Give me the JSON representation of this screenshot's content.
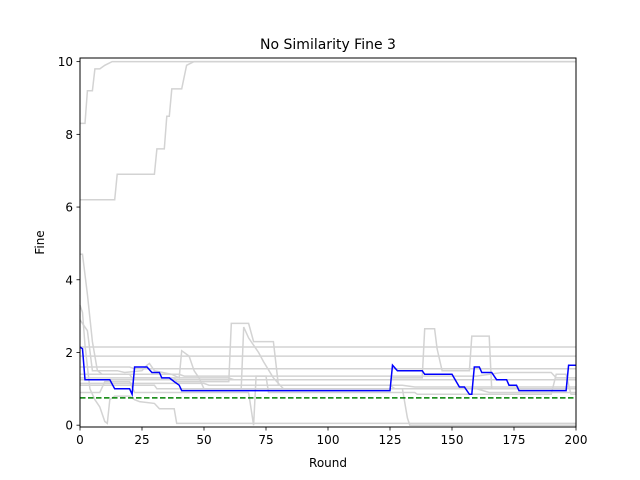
{
  "chart_data": {
    "type": "line",
    "title": "No Similarity Fine 3",
    "xlabel": "Round",
    "ylabel": "Fine",
    "xlim": [
      0,
      200
    ],
    "ylim": [
      -0.05,
      10.1
    ],
    "xticks": [
      0,
      25,
      50,
      75,
      100,
      125,
      150,
      175,
      200
    ],
    "yticks": [
      0,
      2,
      4,
      6,
      8,
      10
    ],
    "grid": false,
    "background_series_color": "#d3d3d3",
    "highlight_color": "#0000ff",
    "reference_color": "#008000",
    "background_series": [
      [
        [
          0,
          8.3
        ],
        [
          2,
          8.3
        ],
        [
          3,
          9.2
        ],
        [
          5,
          9.2
        ],
        [
          6,
          9.8
        ],
        [
          8,
          9.8
        ],
        [
          10,
          9.9
        ],
        [
          13,
          10
        ],
        [
          200,
          10
        ]
      ],
      [
        [
          0,
          6.2
        ],
        [
          14,
          6.2
        ],
        [
          15,
          6.9
        ],
        [
          30,
          6.9
        ],
        [
          31,
          7.6
        ],
        [
          34,
          7.6
        ],
        [
          35,
          8.5
        ],
        [
          36,
          8.5
        ],
        [
          37,
          9.25
        ],
        [
          41,
          9.25
        ],
        [
          43,
          9.9
        ],
        [
          46,
          10
        ],
        [
          200,
          10
        ]
      ],
      [
        [
          0,
          4.7
        ],
        [
          1,
          4.7
        ],
        [
          3,
          3.6
        ],
        [
          5,
          2.3
        ],
        [
          7,
          1.5
        ],
        [
          9,
          1.4
        ],
        [
          20,
          1.4
        ],
        [
          21,
          1.3
        ],
        [
          38,
          1.3
        ],
        [
          39,
          1.2
        ],
        [
          60,
          1.2
        ],
        [
          61,
          2.8
        ],
        [
          68,
          2.8
        ],
        [
          70,
          2.3
        ],
        [
          78,
          2.3
        ],
        [
          80,
          1.1
        ],
        [
          125,
          1.1
        ],
        [
          127,
          1.0
        ],
        [
          200,
          1.0
        ]
      ],
      [
        [
          0,
          3.3
        ],
        [
          1,
          3.1
        ],
        [
          2,
          2.2
        ],
        [
          4,
          1.0
        ],
        [
          6,
          0.7
        ],
        [
          8,
          0.5
        ],
        [
          10,
          0.1
        ],
        [
          11,
          0.05
        ],
        [
          12,
          0.7
        ],
        [
          14,
          0.8
        ],
        [
          20,
          0.8
        ],
        [
          22,
          0.7
        ],
        [
          24,
          0.65
        ],
        [
          30,
          0.6
        ],
        [
          32,
          0.45
        ],
        [
          38,
          0.45
        ],
        [
          39,
          0.05
        ],
        [
          200,
          0.05
        ]
      ],
      [
        [
          0,
          2.9
        ],
        [
          3,
          2.6
        ],
        [
          5,
          1.5
        ],
        [
          15,
          1.5
        ],
        [
          18,
          1.45
        ],
        [
          25,
          1.5
        ],
        [
          27,
          1.65
        ],
        [
          28,
          1.7
        ],
        [
          30,
          1.5
        ],
        [
          37,
          1.4
        ],
        [
          40,
          1.3
        ],
        [
          41,
          2.05
        ],
        [
          44,
          1.9
        ],
        [
          46,
          1.5
        ],
        [
          48,
          1.3
        ],
        [
          50,
          1.0
        ],
        [
          65,
          1.0
        ],
        [
          66,
          2.7
        ],
        [
          68,
          2.4
        ],
        [
          70,
          2.2
        ],
        [
          72,
          2.0
        ],
        [
          74,
          1.75
        ],
        [
          78,
          1.3
        ],
        [
          82,
          1.0
        ],
        [
          120,
          1.0
        ],
        [
          130,
          1.0
        ],
        [
          132,
          0.2
        ],
        [
          133,
          0.0
        ],
        [
          200,
          0.0
        ]
      ],
      [
        [
          0,
          1.25
        ],
        [
          125,
          1.25
        ],
        [
          126,
          1.3
        ],
        [
          138,
          1.3
        ],
        [
          139,
          2.65
        ],
        [
          143,
          2.65
        ],
        [
          144,
          2.1
        ],
        [
          146,
          1.5
        ],
        [
          157,
          1.5
        ],
        [
          158,
          2.45
        ],
        [
          165,
          2.45
        ],
        [
          166,
          1.0
        ],
        [
          200,
          1.0
        ]
      ],
      [
        [
          0,
          1.6
        ],
        [
          5,
          1.6
        ],
        [
          20,
          1.6
        ],
        [
          22,
          1.55
        ],
        [
          200,
          1.55
        ]
      ],
      [
        [
          0,
          1.9
        ],
        [
          38,
          1.9
        ],
        [
          39,
          1.9
        ],
        [
          200,
          1.9
        ]
      ],
      [
        [
          0,
          2.15
        ],
        [
          20,
          2.15
        ],
        [
          200,
          2.15
        ]
      ],
      [
        [
          0,
          1.3
        ],
        [
          60,
          1.3
        ],
        [
          62,
          1.25
        ],
        [
          200,
          1.25
        ]
      ],
      [
        [
          0,
          0.9
        ],
        [
          8,
          0.9
        ],
        [
          10,
          1.2
        ],
        [
          20,
          1.2
        ],
        [
          22,
          0.9
        ],
        [
          68,
          0.9
        ],
        [
          70,
          0.0
        ],
        [
          71,
          1.35
        ],
        [
          75,
          1.35
        ],
        [
          76,
          0.9
        ],
        [
          135,
          0.9
        ],
        [
          136,
          0.85
        ],
        [
          190,
          0.85
        ],
        [
          192,
          1.4
        ],
        [
          196,
          1.4
        ],
        [
          198,
          0.85
        ],
        [
          200,
          0.85
        ]
      ],
      [
        [
          0,
          1.1
        ],
        [
          30,
          1.1
        ],
        [
          31,
          1.0
        ],
        [
          100,
          1.0
        ],
        [
          140,
          1.0
        ],
        [
          160,
          1.0
        ],
        [
          165,
          0.9
        ],
        [
          200,
          0.9
        ]
      ],
      [
        [
          0,
          1.4
        ],
        [
          40,
          1.4
        ],
        [
          42,
          1.35
        ],
        [
          160,
          1.35
        ],
        [
          170,
          1.45
        ],
        [
          190,
          1.45
        ],
        [
          192,
          1.3
        ],
        [
          200,
          1.3
        ]
      ],
      [
        [
          0,
          1.15
        ],
        [
          50,
          1.15
        ],
        [
          52,
          1.1
        ],
        [
          130,
          1.1
        ],
        [
          135,
          1.05
        ],
        [
          200,
          1.05
        ]
      ]
    ],
    "highlight_series": [
      [
        0,
        2.15
      ],
      [
        1,
        2.1
      ],
      [
        2,
        1.25
      ],
      [
        12,
        1.25
      ],
      [
        14,
        1.0
      ],
      [
        20,
        1.0
      ],
      [
        21,
        0.85
      ],
      [
        22,
        1.6
      ],
      [
        27,
        1.6
      ],
      [
        29,
        1.45
      ],
      [
        32,
        1.45
      ],
      [
        33,
        1.3
      ],
      [
        36,
        1.3
      ],
      [
        38,
        1.2
      ],
      [
        40,
        1.1
      ],
      [
        41,
        0.95
      ],
      [
        125,
        0.95
      ],
      [
        126,
        1.65
      ],
      [
        128,
        1.5
      ],
      [
        138,
        1.5
      ],
      [
        139,
        1.4
      ],
      [
        150,
        1.4
      ],
      [
        153,
        1.05
      ],
      [
        155,
        1.05
      ],
      [
        157,
        0.85
      ],
      [
        158,
        0.85
      ],
      [
        159,
        1.6
      ],
      [
        161,
        1.6
      ],
      [
        162,
        1.45
      ],
      [
        166,
        1.45
      ],
      [
        168,
        1.25
      ],
      [
        172,
        1.25
      ],
      [
        173,
        1.1
      ],
      [
        176,
        1.1
      ],
      [
        177,
        0.95
      ],
      [
        196,
        0.95
      ],
      [
        197,
        1.65
      ],
      [
        200,
        1.65
      ]
    ],
    "reference_line": 0.75
  }
}
